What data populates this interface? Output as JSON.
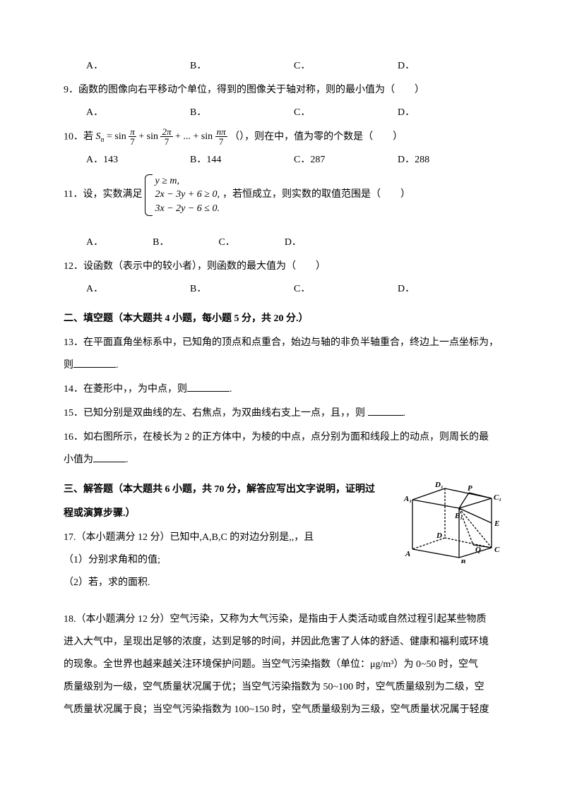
{
  "q_opts": {
    "A": "A．",
    "B": "B．",
    "C": "C．",
    "D": "D．"
  },
  "q9": {
    "text": "9．函数的图像向右平移动个单位，得到的图像关于轴对称，则的最小值为（　　）"
  },
  "q10": {
    "prefix": "10．若",
    "formula": {
      "lhs": "S",
      "sub": "n",
      "terms": [
        "π",
        "2π",
        "nπ"
      ],
      "den": "7"
    },
    "mid": "（），则在中，值为零的个数是（　　）",
    "opts": {
      "A": "A．143",
      "B": "B．144",
      "C": "C．287",
      "D": "D．288"
    }
  },
  "q11": {
    "prefix": "11．设，实数满足",
    "lines": [
      "y ≥ m,",
      "2x − 3y + 6 ≥ 0,",
      "3x − 2y − 6 ≤ 0."
    ],
    "suffix": "，若恒成立，则实数的取值范围是（　　）"
  },
  "q12": {
    "text": "12．设函数（表示中的较小者），则函数的最大值为（　　）"
  },
  "section2": "二、填空题（本大题共 4 小题，每小题 5 分，共 20 分.）",
  "q13": {
    "line1": "13．在平面直角坐标系中，已知角的顶点和点重合，始边与轴的非负半轴重合，终边上一点坐标为，",
    "line2_prefix": "则",
    "line2_suffix": "."
  },
  "q14": {
    "prefix": "14．在菱形中，，为中点，则",
    "suffix": "."
  },
  "q15": {
    "prefix": "15．已知分别是双曲线的左、右焦点，为双曲线右支上一点，且，，则  ",
    "suffix": "."
  },
  "q16": {
    "l1": "16．如右图所示，在棱长为 2 的正方体中，为棱的中点，点分别为面和线段上的动点，则周长的最",
    "l2_prefix": "小值为",
    "l2_suffix": "."
  },
  "section3": "三、解答题（本大题共 6 小题，共 70 分，解答应写出文字说明，证明过",
  "section3b": "程或演算步骤.）",
  "q17": {
    "l1": "17.（本小题满分 12 分）已知中,A,B,C 的对边分别是,,，且",
    "l2": "（1）分别求角和的值;",
    "l3": "（2）若，求的面积."
  },
  "q18": {
    "l1": "18.（本小题满分 12 分）空气污染，又称为大气污染，是指由于人类活动或自然过程引起某些物质",
    "l2": "进入大气中，呈现出足够的浓度，达到足够的时间，并因此危害了人体的舒适、健康和福利或环境",
    "l3": "的现象。全世界也越来越关注环境保护问题。当空气污染指数（单位：μg/m³）为 0~50 时，空气",
    "l4": "质量级别为一级，空气质量状况属于优；当空气污染指数为 50~100 时，空气质量级别为二级，空",
    "l5": "气质量状况属于良；当空气污染指数为 100~150 时，空气质量级别为三级，空气质量状况属于轻度"
  },
  "cube": {
    "labels": {
      "A1": "A₁",
      "B1": "B₁",
      "C1": "C₁",
      "D1": "D₁",
      "A": "A",
      "B": "B",
      "C": "C",
      "D": "D",
      "P": "P",
      "E": "E",
      "Q": "Q"
    },
    "stroke": "#000000",
    "strokeWidth": 1.3,
    "fontsize": 11
  }
}
